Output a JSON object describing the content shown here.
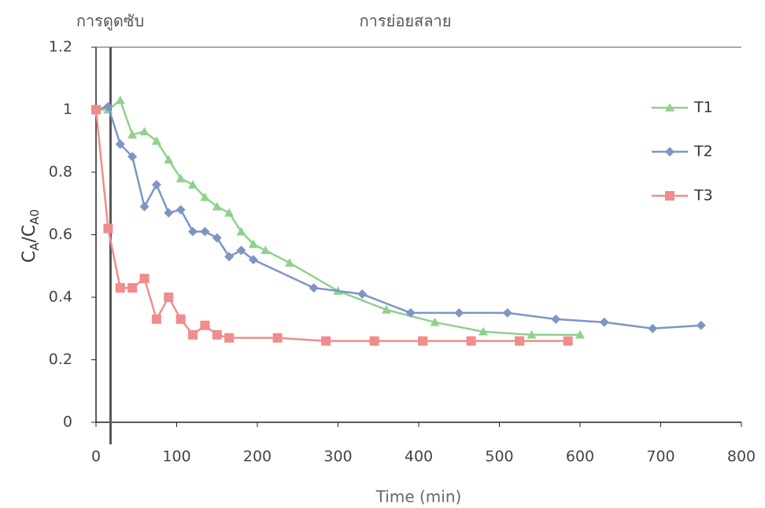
{
  "chart_data": {
    "type": "line",
    "annotations": [
      "การดูดซับ",
      "การย่อยสลาย"
    ],
    "x_label": "Time (min)",
    "y_label_parts": [
      "C",
      "A",
      "/C",
      "A0"
    ],
    "divider_x": 18,
    "xlim": [
      0,
      800
    ],
    "xticks": [
      0,
      100,
      200,
      300,
      400,
      500,
      600,
      700,
      800
    ],
    "ylim": [
      0,
      1.2
    ],
    "yticks": [
      0,
      0.2,
      0.4,
      0.6,
      0.8,
      1,
      1.2
    ],
    "legend": "right",
    "series": [
      {
        "name": "T1",
        "color": "#8fd18c",
        "marker": "triangle",
        "x": [
          0,
          15,
          30,
          45,
          60,
          75,
          90,
          105,
          120,
          135,
          150,
          165,
          180,
          195,
          210,
          240,
          300,
          360,
          420,
          480,
          540,
          600
        ],
        "values": [
          1.0,
          1.0,
          1.03,
          0.92,
          0.93,
          0.9,
          0.84,
          0.78,
          0.76,
          0.72,
          0.69,
          0.67,
          0.61,
          0.57,
          0.55,
          0.51,
          0.42,
          0.36,
          0.32,
          0.29,
          0.28,
          0.28
        ]
      },
      {
        "name": "T2",
        "color": "#7d95c5",
        "marker": "diamond",
        "x": [
          0,
          15,
          30,
          45,
          60,
          75,
          90,
          105,
          120,
          135,
          150,
          165,
          180,
          195,
          270,
          330,
          390,
          450,
          510,
          570,
          630,
          690,
          750
        ],
        "values": [
          1.0,
          1.01,
          0.89,
          0.85,
          0.69,
          0.76,
          0.67,
          0.68,
          0.61,
          0.61,
          0.59,
          0.53,
          0.55,
          0.52,
          0.43,
          0.41,
          0.35,
          0.35,
          0.35,
          0.33,
          0.32,
          0.3,
          0.31
        ]
      },
      {
        "name": "T3",
        "color": "#f08c8c",
        "marker": "square",
        "x": [
          0,
          15,
          30,
          45,
          60,
          75,
          90,
          105,
          120,
          135,
          150,
          165,
          225,
          285,
          345,
          405,
          465,
          525,
          585
        ],
        "values": [
          1.0,
          0.62,
          0.43,
          0.43,
          0.46,
          0.33,
          0.4,
          0.33,
          0.28,
          0.31,
          0.28,
          0.27,
          0.27,
          0.26,
          0.26,
          0.26,
          0.26,
          0.26,
          0.26
        ]
      }
    ]
  }
}
